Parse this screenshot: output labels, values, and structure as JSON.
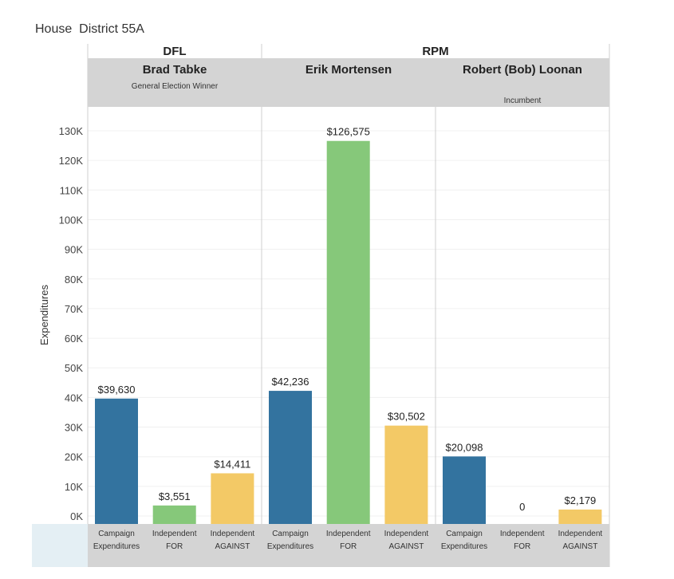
{
  "chart_data": {
    "type": "bar",
    "title": "House  District 55A",
    "ylabel": "Expenditures",
    "ylim": [
      0,
      135000
    ],
    "yticks": [
      0,
      10000,
      20000,
      30000,
      40000,
      50000,
      60000,
      70000,
      80000,
      90000,
      100000,
      110000,
      120000,
      130000
    ],
    "ytick_labels": [
      "0K",
      "10K",
      "20K",
      "30K",
      "40K",
      "50K",
      "60K",
      "70K",
      "80K",
      "90K",
      "100K",
      "110K",
      "120K",
      "130K"
    ],
    "grid": true,
    "parties": [
      {
        "name": "DFL",
        "span": 1
      },
      {
        "name": "RPM",
        "span": 2
      }
    ],
    "categories": [
      {
        "line1": "Campaign",
        "line2": "Expenditures"
      },
      {
        "line1": "Independent",
        "line2": "FOR"
      },
      {
        "line1": "Independent",
        "line2": "AGAINST"
      }
    ],
    "colors": [
      "#33739f",
      "#86c87a",
      "#f3c966"
    ],
    "panels": [
      {
        "candidate": "Brad Tabke",
        "note": "General Election Winner",
        "note_position": "top",
        "values": [
          39630,
          3551,
          14411
        ],
        "labels": [
          "$39,630",
          "$3,551",
          "$14,411"
        ]
      },
      {
        "candidate": "Erik Mortensen",
        "note": "",
        "note_position": "top",
        "values": [
          42236,
          126575,
          30502
        ],
        "labels": [
          "$42,236",
          "$126,575",
          "$30,502"
        ]
      },
      {
        "candidate": "Robert (Bob) Loonan",
        "note": "Incumbent",
        "note_position": "bottom",
        "values": [
          20098,
          0,
          2179
        ],
        "labels": [
          "$20,098",
          "0",
          "$2,179"
        ]
      }
    ]
  }
}
